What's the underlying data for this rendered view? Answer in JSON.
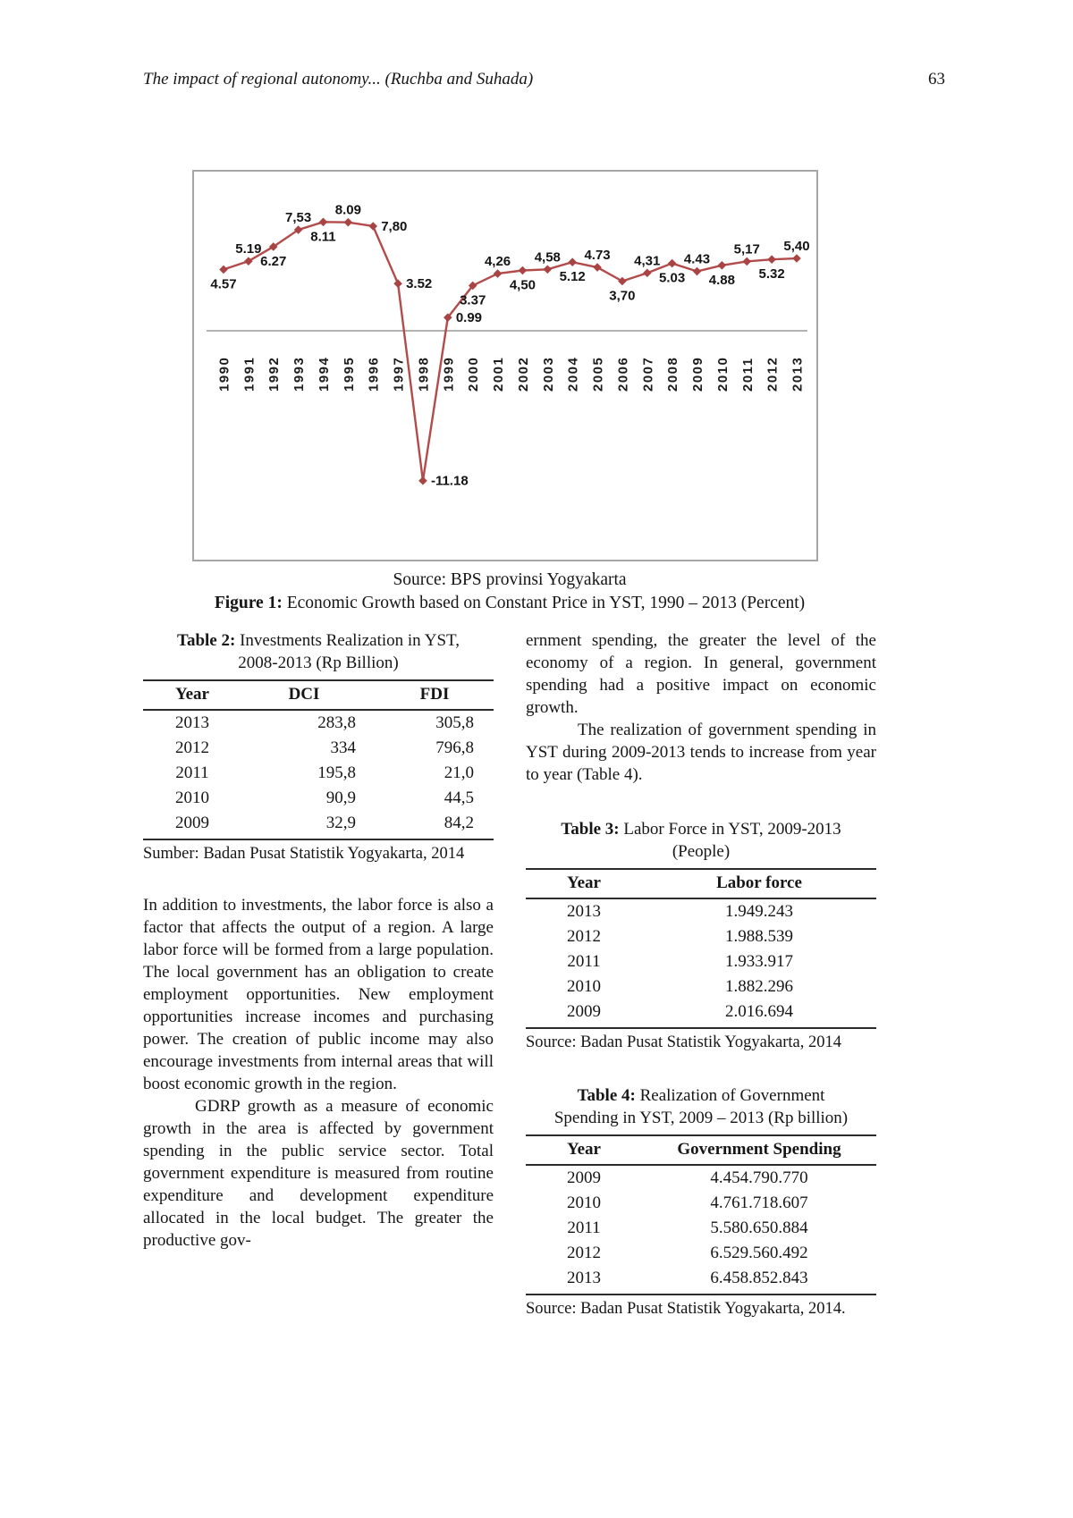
{
  "header": {
    "running_title": "The impact of regional autonomy... (Ruchba and Suhada)",
    "page_number": "63"
  },
  "figure": {
    "source_line": "Source: BPS provinsi Yogyakarta",
    "caption_label": "Figure 1:",
    "caption_text": " Economic Growth based on Constant Price in YST, 1990 – 2013 (Percent)"
  },
  "chart_data": {
    "type": "line",
    "title": "Economic Growth based on Constant Price in YST, 1990-2013 (Percent)",
    "xlabel": "",
    "ylabel": "",
    "grid": false,
    "legend": false,
    "ylim": [
      -13,
      10
    ],
    "x": [
      "1990",
      "1991",
      "1992",
      "1993",
      "1994",
      "1995",
      "1996",
      "1997",
      "1998",
      "1999",
      "2000",
      "2001",
      "2002",
      "2003",
      "2004",
      "2005",
      "2006",
      "2007",
      "2008",
      "2009",
      "2010",
      "2011",
      "2012",
      "2013"
    ],
    "series": [
      {
        "name": "Economic growth (%)",
        "values": [
          4.57,
          5.19,
          6.27,
          7.53,
          8.11,
          8.09,
          7.8,
          3.52,
          -11.18,
          0.99,
          3.37,
          4.26,
          4.5,
          4.58,
          5.12,
          4.73,
          3.7,
          4.31,
          5.03,
          4.43,
          4.88,
          5.17,
          5.32,
          5.4
        ]
      }
    ],
    "point_labels": [
      "4.57",
      "5.19",
      "6.27",
      "7,53",
      "8.11",
      "8.09",
      "7,80",
      "3.52",
      "-11.18",
      "0.99",
      "3.37",
      "4,26",
      "4,50",
      "4,58",
      "5.12",
      "4.73",
      "3,70",
      "4,31",
      "5.03",
      "4.43",
      "4.88",
      "5,17",
      "5.32",
      "5,40"
    ],
    "label_side": [
      "below",
      "above",
      "below",
      "above",
      "below",
      "above",
      "right",
      "right",
      "right",
      "right",
      "below",
      "above",
      "below",
      "above",
      "below",
      "above",
      "below",
      "above",
      "below",
      "above",
      "below",
      "above",
      "below",
      "above"
    ],
    "line_color": "#b34b4b",
    "marker_color": "#a94444",
    "marker": "diamond"
  },
  "left_column": {
    "table2": {
      "caption_label": "Table 2:",
      "caption_rest": " Investments Realization in YST,",
      "caption_line2": "2008-2013 (Rp Billion)",
      "headers": [
        "Year",
        "DCI",
        "FDI"
      ],
      "rows": [
        [
          "2013",
          "283,8",
          "305,8"
        ],
        [
          "2012",
          "334",
          "796,8"
        ],
        [
          "2011",
          "195,8",
          "21,0"
        ],
        [
          "2010",
          "90,9",
          "44,5"
        ],
        [
          "2009",
          "32,9",
          "84,2"
        ]
      ],
      "source": "Sumber: Badan Pusat Statistik Yogyakarta, 2014"
    },
    "paragraph1": "In addition to investments, the labor force is also a factor that affects the output of a region. A large labor force will be formed from a large population. The local government has an obligation to create employment opportunities. New employment opportunities increase incomes and purchasing power. The creation of public income may also encourage investments from internal areas that will boost economic growth in the region.",
    "paragraph2": "GDRP growth as a measure of economic growth in the area is affected by government spending in the public service sector. Total government expenditure is measured from routine expenditure and development expenditure allocated in the local budget. The greater the productive gov-"
  },
  "right_column": {
    "paragraph1": "ernment spending, the greater the level of the economy of a region. In general, government spending had a positive impact on economic growth.",
    "paragraph2": "The realization of government spending in YST during 2009-2013 tends to increase from year to year (Table 4).",
    "table3": {
      "caption_label": "Table 3:",
      "caption_rest": " Labor Force in YST, 2009-2013",
      "caption_line2": "(People)",
      "headers": [
        "Year",
        "Labor force"
      ],
      "rows": [
        [
          "2013",
          "1.949.243"
        ],
        [
          "2012",
          "1.988.539"
        ],
        [
          "2011",
          "1.933.917"
        ],
        [
          "2010",
          "1.882.296"
        ],
        [
          "2009",
          "2.016.694"
        ]
      ],
      "source": "Source: Badan Pusat Statistik Yogyakarta, 2014"
    },
    "table4": {
      "caption_label": "Table 4:",
      "caption_rest": " Realization of Government",
      "caption_line2": "Spending in YST, 2009 – 2013 (Rp billion)",
      "headers": [
        "Year",
        "Government Spending"
      ],
      "rows": [
        [
          "2009",
          "4.454.790.770"
        ],
        [
          "2010",
          "4.761.718.607"
        ],
        [
          "2011",
          "5.580.650.884"
        ],
        [
          "2012",
          "6.529.560.492"
        ],
        [
          "2013",
          "6.458.852.843"
        ]
      ],
      "source": "Source: Badan Pusat Statistik Yogyakarta, 2014."
    }
  }
}
